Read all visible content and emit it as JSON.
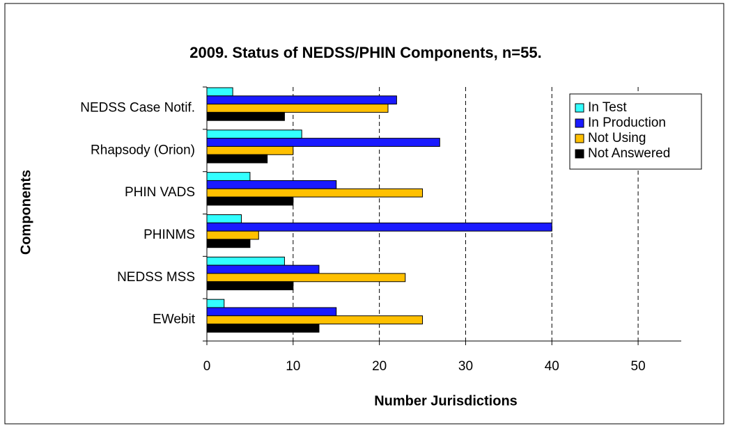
{
  "chart_data": {
    "type": "barh",
    "title": "2009. Status of NEDSS/PHIN Components, n=55.",
    "xlabel": "Number Jurisdictions",
    "ylabel": "Components",
    "categories": [
      "NEDSS Case Notif.",
      "Rhapsody (Orion)",
      "PHIN VADS",
      "PHINMS",
      "NEDSS MSS",
      "EWebit"
    ],
    "series": [
      {
        "name": "In Test",
        "color": "#33ffff",
        "values": [
          3,
          11,
          5,
          4,
          9,
          2
        ]
      },
      {
        "name": "In Production",
        "color": "#1a1aff",
        "values": [
          22,
          27,
          15,
          40,
          13,
          15
        ]
      },
      {
        "name": "Not Using",
        "color": "#ffc000",
        "values": [
          21,
          10,
          25,
          6,
          23,
          25
        ]
      },
      {
        "name": "Not Answered",
        "color": "#000000",
        "values": [
          9,
          7,
          10,
          5,
          10,
          13
        ]
      }
    ],
    "xlim": [
      0,
      55
    ],
    "xticks": [
      0,
      10,
      20,
      30,
      40,
      50
    ],
    "grid": true,
    "legend": "upper right"
  }
}
